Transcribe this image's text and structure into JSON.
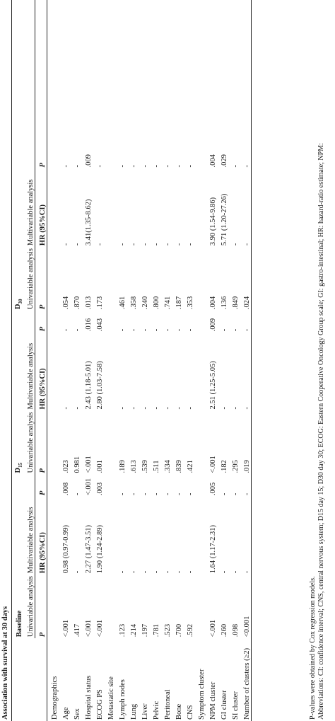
{
  "caption": "Association with survival at 30 days",
  "groups": {
    "baseline": "Baseline",
    "d15": "D15",
    "d30": "D30"
  },
  "subheaders": {
    "univariable": "Univariable analysis",
    "multivariable": "Multivariable analysis",
    "p": "P",
    "hr": "HR (95%CI)"
  },
  "rows": [
    {
      "label": "Demographics",
      "cells": [
        "",
        "",
        "",
        "",
        "",
        "",
        "",
        "",
        ""
      ]
    },
    {
      "label": "Age",
      "cells": [
        "<.001",
        "0.98 (0.97-0.99)",
        ".008",
        ".023",
        "-",
        "-",
        ".054",
        "-",
        "-"
      ]
    },
    {
      "label": "Sex",
      "cells": [
        ".417",
        "-",
        "-",
        "0.981",
        "-",
        "-",
        ".870",
        "-",
        "-"
      ]
    },
    {
      "label": "Hospital status",
      "cells": [
        "<.001",
        "2.27 (1.47-3.51)",
        "<.001",
        "<.001",
        "2.43 (1.18-5.01)",
        ".016",
        ".013",
        "3.41(1.35-8.62)",
        ".009"
      ]
    },
    {
      "label": "ECOG PS",
      "cells": [
        "<.001",
        "1.90 (1.24-2.89)",
        ".003",
        ".001",
        "2.80 (1.03-7.58)",
        ".043",
        ".173",
        "-",
        "-"
      ]
    },
    {
      "label": "Metastatic site",
      "cells": [
        "",
        "",
        "",
        "",
        "",
        "",
        "",
        "",
        ""
      ]
    },
    {
      "label": "Lymph nodes",
      "cells": [
        ".123",
        "-",
        "-",
        ".189",
        "-",
        "-",
        ".461",
        "-",
        "-"
      ]
    },
    {
      "label": "Lung",
      "cells": [
        ".214",
        "-",
        "-",
        ".613",
        "-",
        "-",
        ".358",
        "-",
        "-"
      ]
    },
    {
      "label": "Liver",
      "cells": [
        ".197",
        "-",
        "-",
        ".539",
        "-",
        "-",
        ".240",
        "-",
        "-"
      ]
    },
    {
      "label": "Pelvic",
      "cells": [
        ".781",
        "-",
        "-",
        ".511",
        "-",
        "-",
        ".800",
        "-",
        "-"
      ]
    },
    {
      "label": "Peritoneal",
      "cells": [
        ".523",
        "-",
        "-",
        ".334",
        "-",
        "-",
        ".741",
        "-",
        "-"
      ]
    },
    {
      "label": "Bone",
      "cells": [
        ".700",
        "-",
        "-",
        ".839",
        "-",
        "-",
        ".187",
        "-",
        "-"
      ]
    },
    {
      "label": "CNS",
      "cells": [
        ".592",
        "-",
        "-",
        ".421",
        "-",
        "-",
        ".353",
        "-",
        "-"
      ]
    },
    {
      "label": "Symptom cluster",
      "cells": [
        "",
        "",
        "",
        "",
        "",
        "",
        "",
        "",
        ""
      ]
    },
    {
      "label": "NPM cluster",
      "cells": [
        "<.001",
        "1.64 (1.17-2.31)",
        ".005",
        "<.001",
        "2.51 (1.25-5.05)",
        ".009",
        ".004",
        "3.90 (1.54-9.86)",
        ".004"
      ]
    },
    {
      "label": "GI cluster",
      "cells": [
        ".260",
        "-",
        "-",
        ".182",
        "-",
        "-",
        ".136",
        "5.71 (1.20-27.26)",
        ".029"
      ]
    },
    {
      "label": "SI cluster",
      "cells": [
        ".098",
        "-",
        "-",
        ".295",
        "-",
        "-",
        ".849",
        "-",
        "-"
      ]
    },
    {
      "label": "Number of clusters (≥2)",
      "cells": [
        "<0.001",
        "-",
        "-",
        ".019",
        "-",
        "-",
        ".024",
        "-",
        "-"
      ]
    }
  ],
  "footnotes": [
    "P-values were obtained by Cox regression models.",
    "Abbreviations: CI: confidence interval; CNS, central nervous system; D15 day 15; D30 day 30; ECOG: Eastern Cooperative Oncology Group scale; GI: gastro-intestinal; HR: hazard-ratio estimate; NPM:"
  ]
}
